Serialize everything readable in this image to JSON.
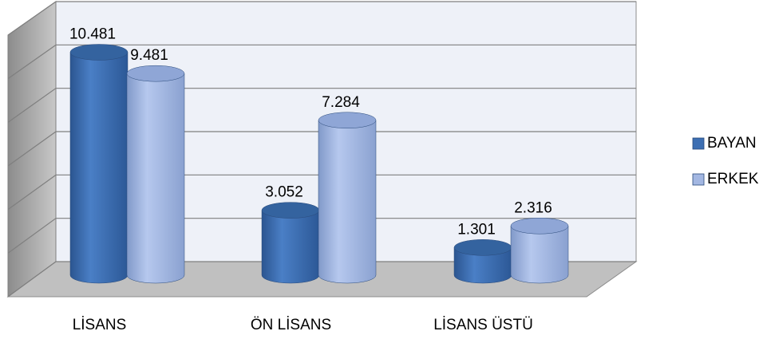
{
  "chart_data": {
    "type": "bar3d",
    "categories": [
      "LİSANS",
      "ÖN LİSANS",
      "LİSANS ÜSTÜ"
    ],
    "series": [
      {
        "name": "BAYAN",
        "color": "#3d6fb3",
        "values": [
          10481,
          3052,
          1301
        ],
        "value_labels": [
          "10.481",
          "3.052",
          "1.301"
        ]
      },
      {
        "name": "ERKEK",
        "color": "#a3b7e2",
        "values": [
          9481,
          7284,
          2316
        ],
        "value_labels": [
          "9.481",
          "7.284",
          "2.316"
        ]
      }
    ],
    "ylim": [
      0,
      12000
    ],
    "yticks": [
      0,
      2000,
      4000,
      6000,
      8000,
      10000,
      12000
    ],
    "grid": true,
    "legend": "right"
  }
}
